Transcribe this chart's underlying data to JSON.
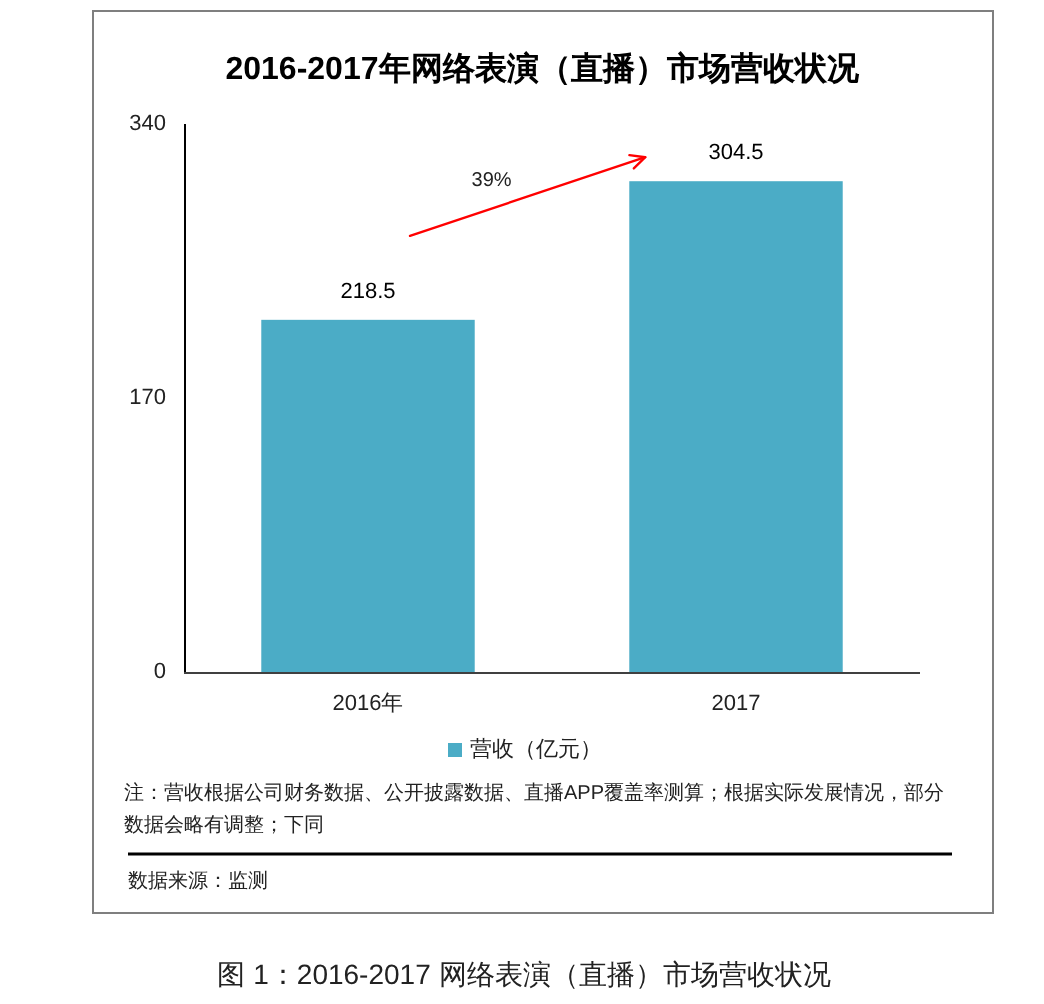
{
  "chart_data": {
    "type": "bar",
    "title": "2016-2017年网络表演（直播）市场营收状况",
    "categories": [
      "2016年",
      "2017"
    ],
    "series": [
      {
        "name": "营收（亿元）",
        "color": "#4bacc6",
        "values": [
          218.5,
          304.5
        ]
      }
    ],
    "ylim": [
      0,
      340
    ],
    "yticks": [
      0,
      170,
      340
    ],
    "data_labels": true,
    "grid": false,
    "legend": "bottom",
    "annotations": [
      "39%",
      "注：营收根据公司财务数据、公开披露数据、直播APP覆盖率测算；根据实际发展情况，部分数据会略有调整；下同",
      "数据来源：监测",
      "图 1：2016-2017 网络表演（直播）市场营收状况"
    ]
  }
}
